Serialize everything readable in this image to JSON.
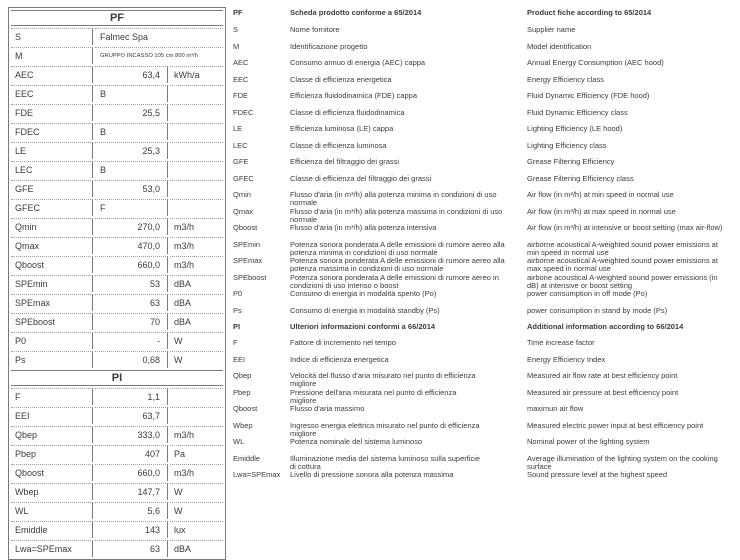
{
  "page": {
    "background": "#ffffff",
    "text_color": "#3b3b3b",
    "border_color": "#7a7a7a"
  },
  "table": {
    "sections": [
      {
        "header": "PF",
        "rows": [
          {
            "code": "S",
            "value": "Falmec Spa",
            "unit": "",
            "merged": true,
            "align": "left"
          },
          {
            "code": "M",
            "value": "GRUPPO INCASSO 105 cm 800 m³/h",
            "unit": "",
            "merged": true,
            "align": "left",
            "small": true
          },
          {
            "code": "AEC",
            "value": "63,4",
            "unit": "kWh/a"
          },
          {
            "code": "EEC",
            "value": "B",
            "unit": "",
            "align": "left"
          },
          {
            "code": "FDE",
            "value": "25,5",
            "unit": ""
          },
          {
            "code": "FDEC",
            "value": "B",
            "unit": "",
            "align": "left"
          },
          {
            "code": "LE",
            "value": "25,3",
            "unit": ""
          },
          {
            "code": "LEC",
            "value": "B",
            "unit": "",
            "align": "left"
          },
          {
            "code": "GFE",
            "value": "53,0",
            "unit": ""
          },
          {
            "code": "GFEC",
            "value": "F",
            "unit": "",
            "align": "left"
          },
          {
            "code": "Qmin",
            "value": "270,0",
            "unit": "m3/h"
          },
          {
            "code": "Qmax",
            "value": "470,0",
            "unit": "m3/h"
          },
          {
            "code": "Qboost",
            "value": "660,0",
            "unit": "m3/h"
          },
          {
            "code": "SPEmin",
            "value": "53",
            "unit": "dBA"
          },
          {
            "code": "SPEmax",
            "value": "63",
            "unit": "dBA"
          },
          {
            "code": "SPEboost",
            "value": "70",
            "unit": "dBA"
          },
          {
            "code": "P0",
            "value": "-",
            "unit": "W"
          },
          {
            "code": "Ps",
            "value": "0,68",
            "unit": "W"
          }
        ]
      },
      {
        "header": "PI",
        "rows": [
          {
            "code": "F",
            "value": "1,1",
            "unit": ""
          },
          {
            "code": "EEI",
            "value": "63,7",
            "unit": ""
          },
          {
            "code": "Qbep",
            "value": "333,0",
            "unit": "m3/h"
          },
          {
            "code": "Pbep",
            "value": "407",
            "unit": "Pa"
          },
          {
            "code": "Qboost",
            "value": "660,0",
            "unit": "m3/h"
          },
          {
            "code": "Wbep",
            "value": "147,7",
            "unit": "W"
          },
          {
            "code": "WL",
            "value": "5,6",
            "unit": "W"
          },
          {
            "code": "Emiddle",
            "value": "143",
            "unit": "lux"
          },
          {
            "code": "Lwa=SPEmax",
            "value": "63",
            "unit": "dBA"
          }
        ]
      }
    ]
  },
  "legend": {
    "rows": [
      {
        "code": "PF",
        "bold": true,
        "it": "Scheda prodotto conforme a 65/2014",
        "en": "Product fiche according to 65/2014"
      },
      {
        "code": "S",
        "it": "Nome fornitore",
        "en": "Supplier name"
      },
      {
        "code": "M",
        "it": "Identificazione progetto",
        "en": "Model identification"
      },
      {
        "code": "AEC",
        "it": "Consumo annuo di energia (AEC) cappa",
        "en": "Annual Energy Consumption (AEC hood)"
      },
      {
        "code": "EEC",
        "it": "Classe di efficienza energetica",
        "en": "Energy Efficiency class"
      },
      {
        "code": "FDE",
        "it": "Efficienza fluidodinamica (FDE) cappa",
        "en": "Fluid Dynamic Efficiency (FDE hood)"
      },
      {
        "code": "FDEC",
        "it": "Classe di efficienza fluidodinamica",
        "en": "Fluid Dynamic Efficiency class"
      },
      {
        "code": "LE",
        "it": "Efficienza luminosa (LE) cappa",
        "en": "Lighting Efficiency (LE hood)"
      },
      {
        "code": "LEC",
        "it": "Classe di efficienza luminosa",
        "en": "Lighting Efficiency class"
      },
      {
        "code": "GFE",
        "it": "Efficienza del filtraggio dei grassi",
        "en": "Grease Filtering Efficiency"
      },
      {
        "code": "GFEC",
        "it": "Classe di efficienza del filtraggio dei grassi",
        "en": "Grease Filtering Efficiency class"
      },
      {
        "code": "Qmin",
        "it": "Flusso d'aria (in m³/h) alla potenza minima in condizioni di uso\nnormale",
        "en": "Air flow (in m³/h) at min speed in normal use"
      },
      {
        "code": "Qmax",
        "it": "Flusso d'aria (in m³/h) alla potenza massima in condizioni di uso\nnormale",
        "en": "Air flow (in m³/h) at max speed in normal use"
      },
      {
        "code": "Qboost",
        "it": "Flusso d'aria (in m³/h) alla potenza intensiva",
        "en": "Air flow (in m³/h) at intensive or boost setting (max air-flow)"
      },
      {
        "code": "SPEmin",
        "it": "Potenza sonora ponderata A delle emissioni di rumore aereo alla\npotenza minima in condizioni di uso normale",
        "en": "airborne acoustical A-weighted sound power emissions at\nmin speed in normal use"
      },
      {
        "code": "SPEmax",
        "it": "Potenza sonora ponderata A delle emissioni di rumore aereo alla\npotenza massima in condizioni di uso normale",
        "en": "airborne acoustical A-weighted sound power emissions at\nmax speed in normal use"
      },
      {
        "code": "SPEboost",
        "it": "Potenza sonora ponderata A delle emissioni di rumore aereo in\ncondizioni di uso intenso o boost",
        "en": "airbone acoustical A-weighted sound power emissions (in\ndB) at intensive or boost setting"
      },
      {
        "code": "P0",
        "it": "Consumo di energia in modalità spento (Po)",
        "en": "power consumption in off mode (Po)"
      },
      {
        "code": "Ps",
        "it": "Consumo di energia in modalità standby (Ps)",
        "en": "power consumption in stand by mode (Ps)"
      },
      {
        "code": "PI",
        "bold": true,
        "it": "Ulteriori informazioni conformi a 66/2014",
        "en": "Additional information according to 66/2014"
      },
      {
        "code": "F",
        "it": "Fattore di incremento nel tempo",
        "en": "Time increase factor"
      },
      {
        "code": "EEI",
        "it": "Indice di efficienza energetica",
        "en": "Energy Efficiency Index"
      },
      {
        "code": "Qbep",
        "it": "Velocità del flusso d'aria misurato nel punto di efficienza\nmigliore",
        "en": "Measured air flow rate at best efficiency point"
      },
      {
        "code": "Pbep",
        "it": "Pressione dell'aria misurata nel punto di efficienza\nmigliore",
        "en": "Measured air pressure at best efficiency point"
      },
      {
        "code": "Qboost",
        "it": "Flusso d'aria massimo",
        "en": "maximun air flow"
      },
      {
        "code": "Wbep",
        "it": "Ingresso energia elettrica misurato nel punto di efficienza\nmigliore",
        "en": "Measured electric power input at best efficiency point"
      },
      {
        "code": "WL",
        "it": "Potenza nominale del sistema luminoso",
        "en": "Nominal power of the lighting system"
      },
      {
        "code": "Emiddle",
        "it": "Illuminazione media del sistema luminoso sulla superficie\ndi cottura",
        "en": "Average illumination of the lighting system on the cooking\nsurface"
      },
      {
        "code": "Lwa=SPEmax",
        "it": "Livello di pressione sonora alla potenza massima",
        "en": "Sound pressure level at the highest speed"
      }
    ]
  }
}
